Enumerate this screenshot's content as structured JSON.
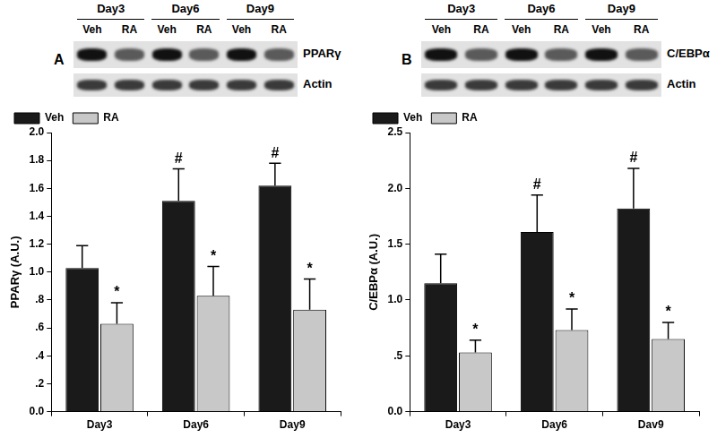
{
  "chart_data": [
    {
      "type": "bar",
      "panel": "A",
      "y_label": "PPARγ (A.U.)",
      "categories": [
        "Day3",
        "Day6",
        "Day9"
      ],
      "series": [
        {
          "name": "Veh",
          "color": "#1a1a1a",
          "values": [
            1.03,
            1.51,
            1.62
          ],
          "errors": [
            0.16,
            0.23,
            0.16
          ],
          "annotations": [
            null,
            "#",
            "#"
          ]
        },
        {
          "name": "RA",
          "color": "#c8c8c8",
          "values": [
            0.63,
            0.83,
            0.73
          ],
          "errors": [
            0.15,
            0.21,
            0.22
          ],
          "annotations": [
            "*",
            "*",
            "*"
          ]
        }
      ],
      "ylim": [
        0,
        2.0
      ],
      "yticks": [
        {
          "value": 0,
          "label": "0.0"
        },
        {
          "value": 0.2,
          "label": ".2"
        },
        {
          "value": 0.4,
          "label": ".4"
        },
        {
          "value": 0.6,
          "label": ".6"
        },
        {
          "value": 0.8,
          "label": ".8"
        },
        {
          "value": 1.0,
          "label": "1.0"
        },
        1.2,
        1.4,
        1.6,
        1.8,
        {
          "value": 2.0,
          "label": "2.0"
        }
      ],
      "grid": false,
      "legend": "top-left",
      "blot": {
        "groups": [
          "Day3",
          "Day6",
          "Day9"
        ],
        "lanes": [
          "Veh",
          "RA"
        ],
        "rows": [
          "PPARγ",
          "Actin"
        ]
      }
    },
    {
      "type": "bar",
      "panel": "B",
      "y_label": "C/EBPα (A.U.)",
      "categories": [
        "Day3",
        "Day6",
        "Dav9"
      ],
      "series": [
        {
          "name": "Veh",
          "color": "#1a1a1a",
          "values": [
            1.15,
            1.61,
            1.82
          ],
          "errors": [
            0.26,
            0.33,
            0.36
          ],
          "annotations": [
            null,
            "#",
            "#"
          ]
        },
        {
          "name": "RA",
          "color": "#c8c8c8",
          "values": [
            0.53,
            0.73,
            0.65
          ],
          "errors": [
            0.11,
            0.19,
            0.15
          ],
          "annotations": [
            "*",
            "*",
            "*"
          ]
        }
      ],
      "ylim": [
        0,
        2.5
      ],
      "yticks": [
        {
          "value": 0,
          "label": "0.0"
        },
        {
          "value": 0.5,
          "label": ".5"
        },
        {
          "value": 1.0,
          "label": "1.0"
        },
        1.5,
        {
          "value": 2.0,
          "label": "2.0"
        },
        2.5
      ],
      "grid": false,
      "legend": "top-left",
      "blot": {
        "groups": [
          "Day3",
          "Day6",
          "Day9"
        ],
        "lanes": [
          "Veh",
          "RA"
        ],
        "rows": [
          "C/EBPα",
          "Actin"
        ]
      }
    }
  ]
}
